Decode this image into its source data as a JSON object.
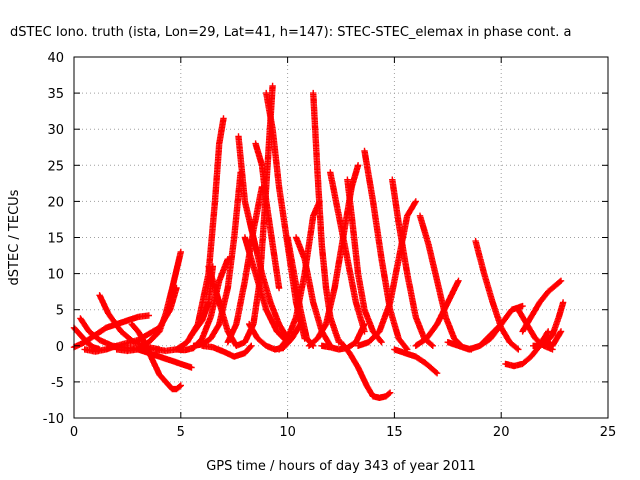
{
  "chart_data": {
    "type": "scatter",
    "title": "dSTEC Iono. truth (ista, Lon=29, Lat=41, h=147): STEC-STEC_elemax in phase cont. a",
    "xlabel": "GPS time / hours of day 343 of year 2011",
    "ylabel": "dSTEC  / TECUs",
    "xlim": [
      0,
      25
    ],
    "ylim": [
      -10,
      40
    ],
    "xticks": [
      0,
      5,
      10,
      15,
      20,
      25
    ],
    "yticks": [
      -10,
      -5,
      0,
      5,
      10,
      15,
      20,
      25,
      30,
      35,
      40
    ],
    "xtick_labels": [
      "0",
      "5",
      "10",
      "15",
      "20",
      "25"
    ],
    "ytick_labels": [
      "-10",
      "-5",
      "0",
      "5",
      "10",
      "15",
      "20",
      "25",
      "30",
      "35",
      "40"
    ],
    "grid": true,
    "marker": "plus",
    "color": "#ff0000",
    "series": [
      {
        "x": [
          0.0,
          0.3,
          0.6,
          0.9,
          1.2
        ],
        "y": [
          2.5,
          1.5,
          0.5,
          -0.2,
          -0.5
        ]
      },
      {
        "x": [
          0.0,
          0.5,
          1.0,
          1.5,
          2.0,
          2.5,
          3.0,
          3.5
        ],
        "y": [
          -0.2,
          0.5,
          1.5,
          2.5,
          3.0,
          3.5,
          4.0,
          4.2
        ]
      },
      {
        "x": [
          0.3,
          0.7,
          1.2,
          1.8,
          2.5,
          3.5
        ],
        "y": [
          3.8,
          2.0,
          0.8,
          0.0,
          -0.3,
          -0.5
        ]
      },
      {
        "x": [
          0.5,
          1.0,
          1.5,
          2.0,
          3.0,
          4.0,
          4.5,
          4.8
        ],
        "y": [
          -0.5,
          -0.8,
          -0.5,
          0.0,
          0.8,
          2.5,
          5.0,
          8.0
        ]
      },
      {
        "x": [
          1.2,
          1.6,
          2.2,
          2.8,
          3.5,
          4.0
        ],
        "y": [
          7.0,
          4.5,
          2.0,
          0.5,
          -0.2,
          -0.5
        ]
      },
      {
        "x": [
          2.7,
          3.0,
          3.3,
          3.6,
          4.0,
          4.3,
          4.6,
          4.8,
          5.0
        ],
        "y": [
          3.0,
          2.0,
          0.5,
          -1.5,
          -4.0,
          -5.0,
          -6.0,
          -6.0,
          -5.5
        ]
      },
      {
        "x": [
          2.0,
          2.5,
          3.0,
          3.5,
          4.0,
          4.3,
          4.6,
          5.0
        ],
        "y": [
          -0.5,
          -0.7,
          -0.5,
          0.5,
          2.0,
          4.5,
          8.0,
          13.0
        ]
      },
      {
        "x": [
          3.0,
          3.5,
          4.0,
          4.5,
          5.0,
          5.5
        ],
        "y": [
          -0.5,
          -1.0,
          -1.5,
          -2.0,
          -2.5,
          -3.0
        ]
      },
      {
        "x": [
          3.8,
          4.3,
          4.8,
          5.3,
          5.8,
          6.3,
          6.6,
          6.8,
          7.0
        ],
        "y": [
          -0.5,
          -0.7,
          -0.5,
          0.5,
          3.0,
          10.0,
          20.0,
          28.0,
          31.5
        ]
      },
      {
        "x": [
          4.8,
          5.2,
          5.6,
          6.0,
          6.4,
          6.8,
          7.2
        ],
        "y": [
          -0.5,
          -0.6,
          -0.3,
          1.0,
          4.0,
          9.0,
          12.0
        ]
      },
      {
        "x": [
          5.6,
          6.0,
          6.4,
          6.8,
          7.2,
          7.5,
          7.8
        ],
        "y": [
          0.0,
          0.2,
          1.0,
          3.0,
          8.0,
          15.0,
          24.0
        ]
      },
      {
        "x": [
          5.5,
          6.0,
          6.3,
          6.5
        ],
        "y": [
          1.5,
          3.5,
          6.0,
          11.0
        ]
      },
      {
        "x": [
          6.0,
          6.5,
          7.0,
          7.5,
          8.0,
          8.3
        ],
        "y": [
          0.0,
          -0.2,
          -0.8,
          -1.5,
          -1.0,
          0.0
        ]
      },
      {
        "x": [
          6.3,
          6.8,
          7.2,
          7.6,
          8.0,
          8.4,
          8.7,
          9.0,
          9.3
        ],
        "y": [
          11.0,
          6.0,
          2.0,
          0.0,
          0.5,
          3.0,
          9.0,
          22.0,
          36.0
        ]
      },
      {
        "x": [
          7.2,
          7.6,
          8.0,
          8.4,
          8.8
        ],
        "y": [
          0.5,
          3.0,
          9.0,
          16.0,
          22.0
        ]
      },
      {
        "x": [
          7.7,
          8.0,
          8.4,
          8.8,
          9.2,
          9.6,
          10.0
        ],
        "y": [
          29.0,
          20.0,
          15.0,
          10.0,
          6.0,
          3.0,
          1.0
        ]
      },
      {
        "x": [
          8.0,
          8.5,
          9.0,
          9.5,
          10.0
        ],
        "y": [
          15.0,
          10.0,
          5.0,
          2.0,
          0.5
        ]
      },
      {
        "x": [
          8.2,
          8.6,
          9.0,
          9.4,
          9.8,
          10.2,
          10.6
        ],
        "y": [
          3.0,
          1.0,
          0.0,
          -0.5,
          -0.3,
          1.0,
          3.0
        ]
      },
      {
        "x": [
          8.5,
          8.8,
          9.0,
          9.3,
          9.6
        ],
        "y": [
          28.0,
          25.0,
          20.0,
          14.0,
          8.0
        ]
      },
      {
        "x": [
          9.0,
          9.3,
          9.6,
          10.0,
          10.4,
          10.8
        ],
        "y": [
          35.0,
          30.0,
          22.0,
          14.0,
          6.0,
          1.0
        ]
      },
      {
        "x": [
          9.6,
          10.0,
          10.4,
          10.8,
          11.2,
          11.5
        ],
        "y": [
          -0.5,
          1.0,
          4.0,
          10.0,
          18.0,
          20.0
        ]
      },
      {
        "x": [
          10.0,
          10.3,
          10.6,
          10.9,
          11.2
        ],
        "y": [
          15.0,
          10.0,
          5.0,
          1.0,
          0.0
        ]
      },
      {
        "x": [
          10.4,
          10.8,
          11.2,
          11.6,
          12.0
        ],
        "y": [
          15.0,
          12.0,
          6.0,
          2.0,
          0.0
        ]
      },
      {
        "x": [
          11.2,
          11.4,
          11.6,
          11.8,
          12.0,
          12.4
        ],
        "y": [
          35.0,
          24.0,
          14.0,
          8.0,
          4.0,
          0.5
        ]
      },
      {
        "x": [
          11.0,
          11.4,
          11.8,
          12.2,
          12.6,
          13.0,
          13.3
        ],
        "y": [
          0.0,
          1.0,
          3.0,
          8.0,
          15.0,
          22.0,
          25.0
        ]
      },
      {
        "x": [
          11.6,
          12.0,
          12.4,
          12.8,
          13.2,
          13.6
        ],
        "y": [
          0.0,
          -0.2,
          -0.5,
          -0.3,
          0.5,
          3.0
        ]
      },
      {
        "x": [
          12.0,
          12.4,
          12.8,
          13.2,
          13.6
        ],
        "y": [
          24.0,
          18.0,
          12.0,
          6.0,
          2.0
        ]
      },
      {
        "x": [
          12.8,
          13.0,
          13.3,
          13.6,
          14.0,
          14.4
        ],
        "y": [
          23.0,
          18.0,
          10.0,
          5.0,
          2.0,
          0.5
        ]
      },
      {
        "x": [
          12.5,
          12.9,
          13.3,
          13.7,
          14.0,
          14.3,
          14.6,
          14.8
        ],
        "y": [
          0.5,
          -1.0,
          -3.0,
          -5.5,
          -7.0,
          -7.2,
          -7.0,
          -6.5
        ]
      },
      {
        "x": [
          13.6,
          14.0,
          14.4,
          14.8,
          15.2,
          15.6
        ],
        "y": [
          27.0,
          20.0,
          12.0,
          5.0,
          1.0,
          -0.5
        ]
      },
      {
        "x": [
          13.3,
          13.8,
          14.3,
          14.8,
          15.2,
          15.6,
          16.0
        ],
        "y": [
          0.0,
          0.5,
          2.0,
          6.0,
          12.0,
          18.0,
          20.0
        ]
      },
      {
        "x": [
          14.9,
          15.2,
          15.6,
          16.0,
          16.4,
          16.8
        ],
        "y": [
          23.0,
          17.0,
          10.0,
          4.0,
          1.0,
          0.0
        ]
      },
      {
        "x": [
          15.0,
          15.5,
          16.0,
          16.5,
          17.0
        ],
        "y": [
          -0.5,
          -1.0,
          -1.5,
          -2.5,
          -3.8
        ]
      },
      {
        "x": [
          16.2,
          16.6,
          17.0,
          17.4,
          17.8,
          18.2,
          18.6
        ],
        "y": [
          18.0,
          14.0,
          9.0,
          4.0,
          1.0,
          -0.2,
          -0.5
        ]
      },
      {
        "x": [
          16.0,
          16.5,
          17.0,
          17.5,
          18.0
        ],
        "y": [
          0.0,
          1.0,
          3.0,
          6.0,
          9.0
        ]
      },
      {
        "x": [
          17.5,
          18.0,
          18.5,
          19.0,
          19.5,
          20.0
        ],
        "y": [
          0.5,
          0.0,
          -0.5,
          0.0,
          1.5,
          3.0
        ]
      },
      {
        "x": [
          18.8,
          19.2,
          19.6,
          20.0,
          20.4,
          20.8
        ],
        "y": [
          14.5,
          10.0,
          6.0,
          2.5,
          0.5,
          -0.5
        ]
      },
      {
        "x": [
          19.0,
          19.5,
          20.0,
          20.5,
          21.0
        ],
        "y": [
          0.0,
          1.0,
          3.0,
          5.0,
          5.5
        ]
      },
      {
        "x": [
          20.2,
          20.6,
          21.0,
          21.4,
          21.8,
          22.2
        ],
        "y": [
          -2.5,
          -2.8,
          -2.5,
          -1.5,
          0.0,
          2.0
        ]
      },
      {
        "x": [
          20.8,
          21.2,
          21.6,
          22.0,
          22.4
        ],
        "y": [
          5.0,
          3.0,
          1.0,
          0.0,
          -0.5
        ]
      },
      {
        "x": [
          21.0,
          21.4,
          21.8,
          22.2,
          22.6,
          22.8
        ],
        "y": [
          2.0,
          4.0,
          6.0,
          7.5,
          8.5,
          9.0
        ]
      },
      {
        "x": [
          21.5,
          21.8,
          22.1,
          22.4,
          22.7,
          22.9
        ],
        "y": [
          0.0,
          0.0,
          0.5,
          1.5,
          4.0,
          6.0
        ]
      },
      {
        "x": [
          22.0,
          22.2,
          22.4,
          22.6,
          22.8
        ],
        "y": [
          1.0,
          0.5,
          0.0,
          1.0,
          2.0
        ]
      }
    ]
  }
}
